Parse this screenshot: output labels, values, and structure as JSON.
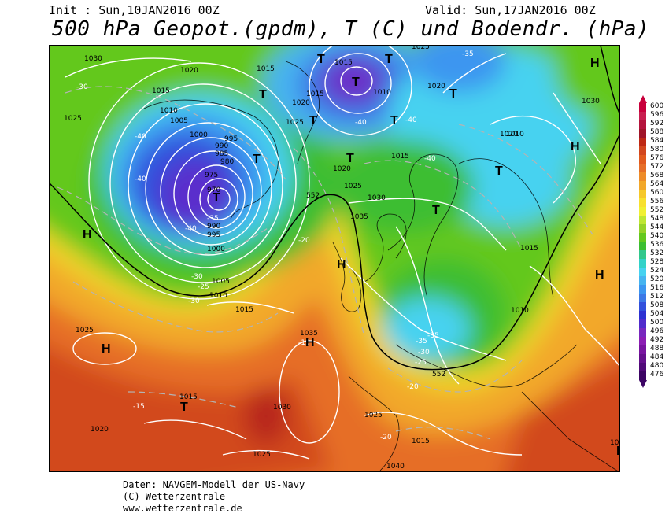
{
  "header": {
    "init": "Init : Sun,10JAN2016 00Z",
    "valid": "Valid: Sun,17JAN2016 00Z",
    "title": "500 hPa Geopot.(gpdm), T (C) und Bodendr. (hPa)"
  },
  "footer": {
    "line1": "Daten: NAVGEM-Modell der US-Navy",
    "line2": "(C) Wetterzentrale",
    "line3": "www.wetterzentrale.de"
  },
  "legend": {
    "levels": [
      "600",
      "596",
      "592",
      "588",
      "584",
      "580",
      "576",
      "572",
      "568",
      "564",
      "560",
      "556",
      "552",
      "548",
      "544",
      "540",
      "536",
      "532",
      "528",
      "524",
      "520",
      "516",
      "512",
      "508",
      "504",
      "500",
      "496",
      "492",
      "488",
      "484",
      "480",
      "476"
    ],
    "colors": [
      "#c8003c",
      "#c81e50",
      "#b4143c",
      "#a01428",
      "#be2814",
      "#d2461e",
      "#e15a1e",
      "#e66e28",
      "#ee8c28",
      "#f2a82a",
      "#f6c82a",
      "#f8e02e",
      "#f0f032",
      "#bee632",
      "#96d228",
      "#64c81e",
      "#3cbe32",
      "#32c88c",
      "#32d2c8",
      "#46d2f0",
      "#46b4f0",
      "#3c96f0",
      "#3c78e6",
      "#3250dc",
      "#2d32d2",
      "#502ccc",
      "#7828be",
      "#8c1eb4",
      "#7814a0",
      "#640f8c",
      "#500a78",
      "#3c0564"
    ]
  },
  "map": {
    "pressure_labels": [
      {
        "text": "1030"
      },
      {
        "text": "1020"
      },
      {
        "text": "1015"
      },
      {
        "text": "1010"
      },
      {
        "text": "1005"
      },
      {
        "text": "1000"
      },
      {
        "text": "995"
      },
      {
        "text": "990"
      },
      {
        "text": "985"
      },
      {
        "text": "980"
      },
      {
        "text": "975"
      },
      {
        "text": "970"
      },
      {
        "text": "1025"
      },
      {
        "text": "1015"
      },
      {
        "text": "1020"
      },
      {
        "text": "1025"
      },
      {
        "text": "1015"
      },
      {
        "text": "1010"
      },
      {
        "text": "1015"
      },
      {
        "text": "1020"
      },
      {
        "text": "1025"
      },
      {
        "text": "1030"
      },
      {
        "text": "1035"
      },
      {
        "text": "1020"
      },
      {
        "text": "1030"
      },
      {
        "text": "1015"
      },
      {
        "text": "1010"
      },
      {
        "text": "1015"
      },
      {
        "text": "1035"
      },
      {
        "text": "1025"
      },
      {
        "text": "1030"
      },
      {
        "text": "1025"
      },
      {
        "text": "1020"
      },
      {
        "text": "1015"
      },
      {
        "text": "1040"
      },
      {
        "text": "1015"
      },
      {
        "text": "1025"
      },
      {
        "text": "1010"
      },
      {
        "text": "1005"
      },
      {
        "text": "1000"
      },
      {
        "text": "995"
      },
      {
        "text": "990"
      },
      {
        "text": "1015"
      },
      {
        "text": "1010"
      },
      {
        "text": "1025"
      },
      {
        "text": "1020"
      },
      {
        "text": "1015"
      }
    ],
    "temp_labels": [
      {
        "text": "-30"
      },
      {
        "text": "-40"
      },
      {
        "text": "-40"
      },
      {
        "text": "-35"
      },
      {
        "text": "-40"
      },
      {
        "text": "-30"
      },
      {
        "text": "-25"
      },
      {
        "text": "-30"
      },
      {
        "text": "-20"
      },
      {
        "text": "-15"
      },
      {
        "text": "-15"
      },
      {
        "text": "-40"
      },
      {
        "text": "-40"
      },
      {
        "text": "-40"
      },
      {
        "text": "-35"
      },
      {
        "text": "-35"
      },
      {
        "text": "-30"
      },
      {
        "text": "-25"
      },
      {
        "text": "-20"
      },
      {
        "text": "-20"
      },
      {
        "text": "-35"
      }
    ],
    "gpdm_labels": [
      {
        "text": "552"
      },
      {
        "text": "552"
      }
    ],
    "highs_lows": [
      {
        "text": "H"
      },
      {
        "text": "H"
      },
      {
        "text": "H"
      },
      {
        "text": "H"
      },
      {
        "text": "H"
      },
      {
        "text": "H"
      },
      {
        "text": "H"
      },
      {
        "text": "H"
      },
      {
        "text": "T"
      },
      {
        "text": "T"
      },
      {
        "text": "T"
      },
      {
        "text": "T"
      },
      {
        "text": "T"
      },
      {
        "text": "T"
      },
      {
        "text": "T"
      },
      {
        "text": "T"
      },
      {
        "text": "T"
      },
      {
        "text": "T"
      },
      {
        "text": "T"
      },
      {
        "text": "T"
      },
      {
        "text": "T"
      }
    ]
  }
}
